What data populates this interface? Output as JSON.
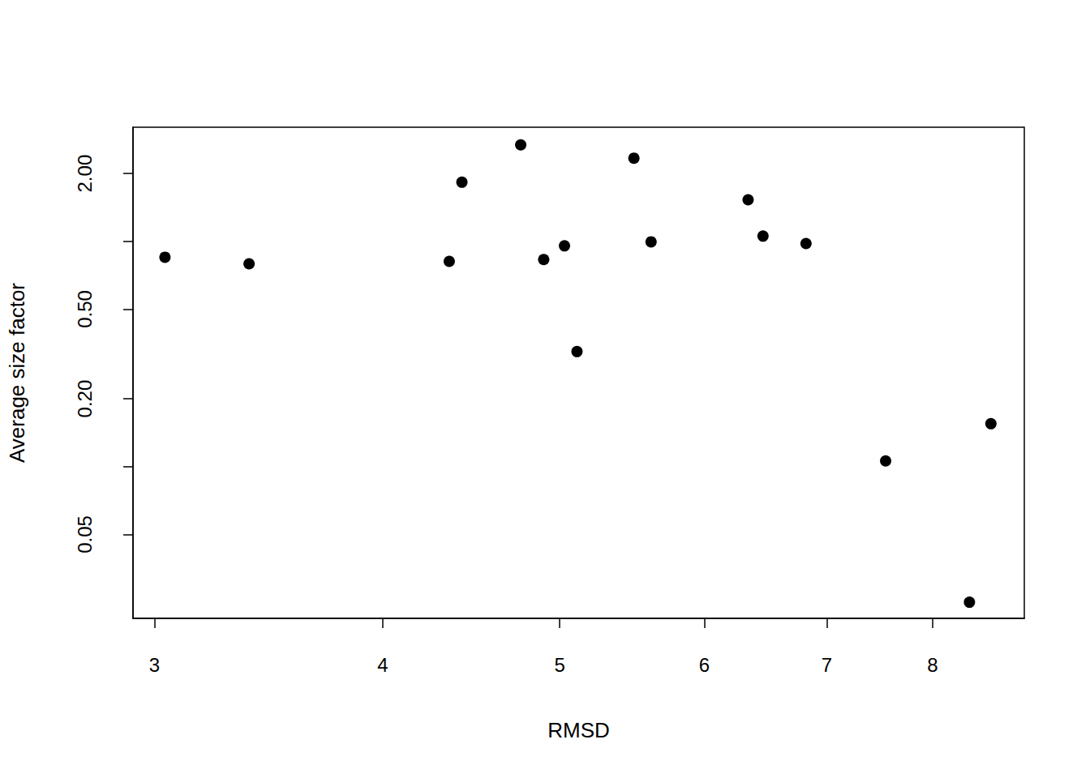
{
  "chart_data": {
    "type": "scatter",
    "xlabel": "RMSD",
    "ylabel": "Average size factor",
    "x": [
      3.04,
      3.38,
      4.35,
      4.42,
      4.76,
      4.9,
      5.03,
      5.11,
      5.49,
      5.61,
      6.34,
      6.46,
      6.82,
      7.54,
      8.38,
      8.61
    ],
    "values": [
      0.85,
      0.795,
      0.815,
      1.83,
      2.68,
      0.83,
      0.955,
      0.324,
      2.34,
      0.995,
      1.53,
      1.055,
      0.978,
      0.106,
      0.025,
      0.155
    ],
    "color": "#000000",
    "marker": "circle",
    "log": true,
    "grid": false,
    "xlim": [
      2.92,
      8.98
    ],
    "xticks": [
      3,
      4,
      5,
      6,
      7,
      8
    ],
    "ylim": [
      0.0212,
      3.21
    ],
    "yticks": [
      0.05,
      {
        "value": 0.1,
        "label": null
      },
      {
        "value": 0.2,
        "label": "0.20"
      },
      {
        "value": 0.5,
        "label": "0.50"
      },
      {
        "value": 1,
        "label": null
      },
      {
        "value": 2,
        "label": "2.00"
      }
    ]
  }
}
